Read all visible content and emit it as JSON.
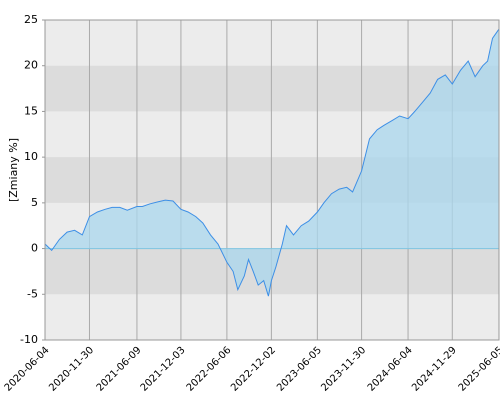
{
  "chart_data": {
    "type": "area",
    "y_label": "[Zmiany %]",
    "x": [
      "2020-06-04",
      "2020-07-01",
      "2020-08-01",
      "2020-09-01",
      "2020-10-01",
      "2020-11-01",
      "2020-11-30",
      "2021-01-01",
      "2021-02-01",
      "2021-03-01",
      "2021-04-01",
      "2021-05-01",
      "2021-06-09",
      "2021-07-01",
      "2021-08-01",
      "2021-09-01",
      "2021-10-01",
      "2021-11-01",
      "2021-12-03",
      "2022-01-01",
      "2022-02-01",
      "2022-03-01",
      "2022-04-01",
      "2022-05-01",
      "2022-06-06",
      "2022-07-01",
      "2022-07-20",
      "2022-08-15",
      "2022-09-01",
      "2022-09-20",
      "2022-10-10",
      "2022-11-01",
      "2022-11-20",
      "2022-12-02",
      "2022-12-20",
      "2023-01-15",
      "2023-02-01",
      "2023-03-01",
      "2023-04-01",
      "2023-05-01",
      "2023-06-05",
      "2023-07-01",
      "2023-08-01",
      "2023-09-01",
      "2023-10-01",
      "2023-10-25",
      "2023-11-30",
      "2024-01-01",
      "2024-02-01",
      "2024-03-01",
      "2024-04-01",
      "2024-05-01",
      "2024-06-04",
      "2024-07-01",
      "2024-08-01",
      "2024-09-01",
      "2024-10-01",
      "2024-11-01",
      "2024-11-29",
      "2025-01-01",
      "2025-02-01",
      "2025-03-01",
      "2025-04-01",
      "2025-04-20",
      "2025-05-10",
      "2025-06-05"
    ],
    "values": [
      0.5,
      -0.2,
      1.0,
      1.8,
      2.0,
      1.5,
      3.5,
      4.0,
      4.3,
      4.5,
      4.5,
      4.2,
      4.6,
      4.6,
      4.9,
      5.1,
      5.3,
      5.2,
      4.3,
      4.0,
      3.5,
      2.8,
      1.5,
      0.5,
      -1.5,
      -2.5,
      -4.5,
      -3.0,
      -1.2,
      -2.5,
      -4.0,
      -3.5,
      -5.2,
      -3.5,
      -2.0,
      0.5,
      2.5,
      1.5,
      2.5,
      3.0,
      4.0,
      5.0,
      6.0,
      6.5,
      6.7,
      6.2,
      8.5,
      12.0,
      13.0,
      13.5,
      14.0,
      14.5,
      14.2,
      15.0,
      16.0,
      17.0,
      18.5,
      19.0,
      18.0,
      19.5,
      20.5,
      18.8,
      20.0,
      20.5,
      23.0,
      24.0
    ],
    "line_color": "#3d8fe6",
    "fill_color": "#a9d7ee",
    "plot_background": "#ececec",
    "band_color": "#dcdcdc",
    "xlim": [
      "2020-06-04",
      "2025-06-05"
    ],
    "xticks": [
      "2020-06-04",
      "2020-11-30",
      "2021-06-09",
      "2021-12-03",
      "2022-06-06",
      "2022-12-02",
      "2023-06-05",
      "2023-11-30",
      "2024-06-04",
      "2024-11-29",
      "2025-06-05"
    ],
    "ylim": [
      -10,
      25
    ],
    "yticks": [
      -10,
      -5,
      0,
      5,
      10,
      15,
      20,
      25
    ],
    "grid": true
  }
}
